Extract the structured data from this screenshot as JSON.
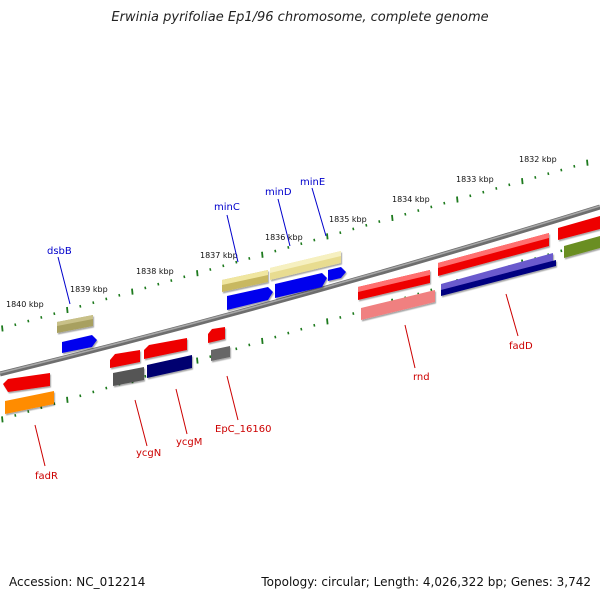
{
  "title": "Erwinia pyrifoliae Ep1/96 chromosome, complete genome",
  "footer": {
    "accession": "Accession: NC_012214",
    "topology": "Topology: circular; Length: 4,026,322 bp; Genes: 3,742"
  },
  "colors": {
    "backbone": "#808080",
    "tick": "#1d7a1d",
    "label_forward": "#0000cc",
    "label_reverse": "#cc0000"
  },
  "kbp_labels": [
    "1840 kbp",
    "1839 kbp",
    "1838 kbp",
    "1837 kbp",
    "1836 kbp",
    "1835 kbp",
    "1834 kbp",
    "1833 kbp",
    "1832 kbp"
  ],
  "gene_labels": {
    "dsbB": "dsbB",
    "minC": "minC",
    "minD": "minD",
    "minE": "minE",
    "fadR": "fadR",
    "ycgN": "ycgN",
    "ycgM": "ycgM",
    "EpC_16160": "EpC_16160",
    "rnd": "rnd",
    "fadD": "fadD"
  }
}
